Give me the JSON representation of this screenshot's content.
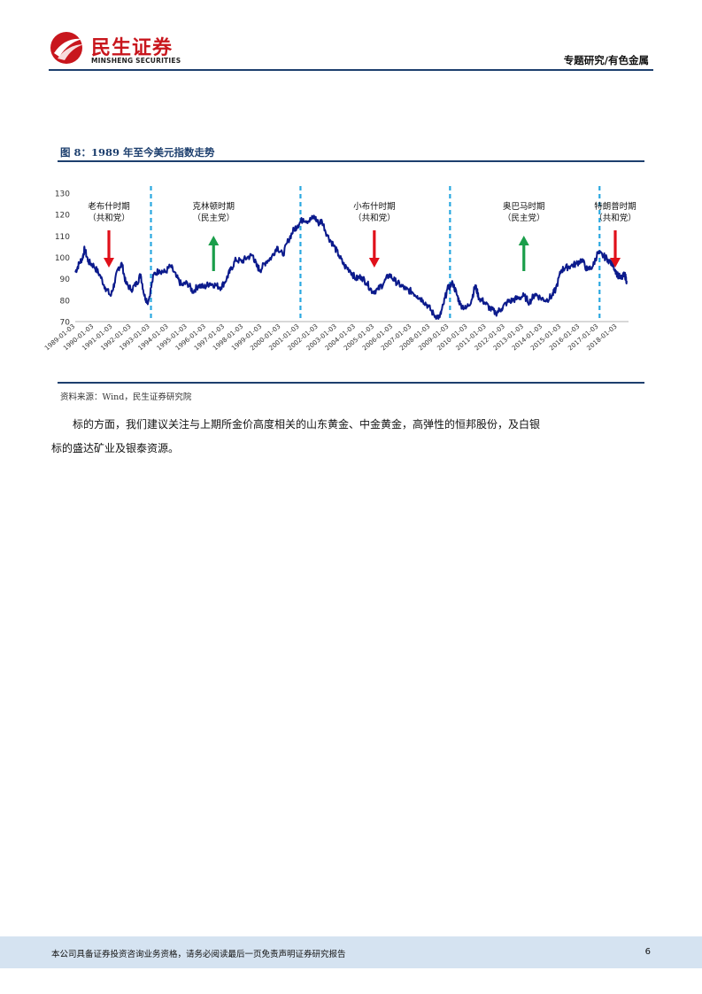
{
  "header": {
    "brand_cn": "民生证券",
    "brand_en": "MINSHENG SECURITIES",
    "section": "专题研究/有色金属",
    "colors": {
      "brand_red": "#c8161d",
      "navy": "#1d3f6e"
    }
  },
  "figure": {
    "title": "图 8：1989 年至今美元指数走势",
    "source": "资料来源：Wind，民生证券研究院"
  },
  "chart_data": {
    "type": "line",
    "title": "1989 年至今美元指数走势",
    "series_color": "#0b1a8c",
    "ylim": [
      70,
      130
    ],
    "yticks": [
      70,
      80,
      90,
      100,
      110,
      120,
      130
    ],
    "xlim": [
      1989.0,
      2018.6
    ],
    "xtick_labels": [
      "1989-01-03",
      "1990-01-03",
      "1991-01-03",
      "1992-01-03",
      "1993-01-03",
      "1994-01-03",
      "1995-01-03",
      "1996-01-03",
      "1997-01-03",
      "1998-01-03",
      "1999-01-03",
      "2000-01-03",
      "2001-01-03",
      "2002-01-03",
      "2003-01-03",
      "2004-01-03",
      "2005-01-03",
      "2006-01-03",
      "2007-01-03",
      "2008-01-03",
      "2009-01-03",
      "2010-01-03",
      "2011-01-03",
      "2012-01-03",
      "2013-01-03",
      "2014-01-03",
      "2015-01-03",
      "2016-01-03",
      "2017-01-03",
      "2018-01-03"
    ],
    "series": [
      {
        "name": "美元指数",
        "x": [
          1989.0,
          1989.2,
          1989.4,
          1989.5,
          1989.7,
          1990.0,
          1990.3,
          1990.6,
          1990.9,
          1991.1,
          1991.3,
          1991.5,
          1991.7,
          1992.0,
          1992.3,
          1992.5,
          1992.7,
          1992.9,
          1993.2,
          1993.5,
          1993.8,
          1994.1,
          1994.4,
          1994.7,
          1995.0,
          1995.3,
          1995.6,
          1995.9,
          1996.2,
          1996.5,
          1996.8,
          1997.1,
          1997.3,
          1997.6,
          1997.9,
          1998.2,
          1998.5,
          1998.7,
          1998.9,
          1999.2,
          1999.5,
          1999.8,
          2000.1,
          2000.4,
          2000.7,
          2000.9,
          2001.2,
          2001.5,
          2001.8,
          2002.0,
          2002.2,
          2002.5,
          2002.8,
          2003.1,
          2003.4,
          2003.7,
          2004.0,
          2004.3,
          2004.6,
          2004.9,
          2005.2,
          2005.5,
          2005.8,
          2006.1,
          2006.4,
          2006.7,
          2007.0,
          2007.3,
          2007.6,
          2007.9,
          2008.2,
          2008.5,
          2008.7,
          2008.9,
          2009.2,
          2009.4,
          2009.6,
          2009.9,
          2010.2,
          2010.4,
          2010.6,
          2010.9,
          2011.2,
          2011.5,
          2011.8,
          2012.1,
          2012.4,
          2012.7,
          2013.0,
          2013.3,
          2013.6,
          2013.9,
          2014.2,
          2014.5,
          2014.7,
          2015.0,
          2015.2,
          2015.5,
          2015.8,
          2016.1,
          2016.4,
          2016.7,
          2016.95,
          2017.2,
          2017.5,
          2017.8,
          2018.0,
          2018.2,
          2018.4,
          2018.5
        ],
        "y": [
          93,
          97,
          100,
          104,
          98,
          96,
          92,
          86,
          82,
          88,
          95,
          97,
          88,
          85,
          88,
          92,
          82,
          79,
          92,
          94,
          93,
          96,
          91,
          87,
          88,
          84,
          87,
          86,
          88,
          87,
          86,
          90,
          94,
          99,
          98,
          100,
          101,
          96,
          94,
          98,
          100,
          105,
          101,
          108,
          113,
          115,
          118,
          117,
          119,
          116,
          117,
          110,
          106,
          101,
          96,
          94,
          90,
          91,
          88,
          84,
          85,
          88,
          92,
          89,
          87,
          85,
          84,
          82,
          80,
          77,
          73,
          72,
          78,
          85,
          88,
          83,
          78,
          76,
          80,
          87,
          81,
          79,
          76,
          74,
          76,
          79,
          80,
          81,
          82,
          79,
          83,
          81,
          80,
          82,
          85,
          94,
          95,
          96,
          97,
          99,
          94,
          96,
          102,
          101,
          99,
          96,
          92,
          90,
          92,
          89
        ]
      }
    ],
    "period_dividers_x": [
      1993.05,
      2001.05,
      2009.05,
      2017.05
    ],
    "annotations": [
      {
        "name": "bush",
        "label": "老布什时期",
        "party": "（共和党）",
        "x": 1990.8,
        "arrow": "down"
      },
      {
        "name": "clinton",
        "label": "克林顿时期",
        "party": "（民主党）",
        "x": 1996.4,
        "arrow": "up"
      },
      {
        "name": "wbush",
        "label": "小布什时期",
        "party": "（共和党）",
        "x": 2005.0,
        "arrow": "down"
      },
      {
        "name": "obama",
        "label": "奥巴马时期",
        "party": "（民主党）",
        "x": 2013.0,
        "arrow": "up"
      },
      {
        "name": "trump",
        "label": "特朗普时期",
        "party": "（共和党）",
        "x": 2018.2,
        "arrow": "down"
      }
    ]
  },
  "body": {
    "paragraph": "标的方面，我们建议关注与上期所金价高度相关的山东黄金、中金黄金，高弹性的恒邦股份，及白银标的盛达矿业及银泰资源。"
  },
  "footer": {
    "disclaimer": "本公司具备证券投资咨询业务资格，请务必阅读最后一页免责声明证券研究报告",
    "page": "6"
  }
}
